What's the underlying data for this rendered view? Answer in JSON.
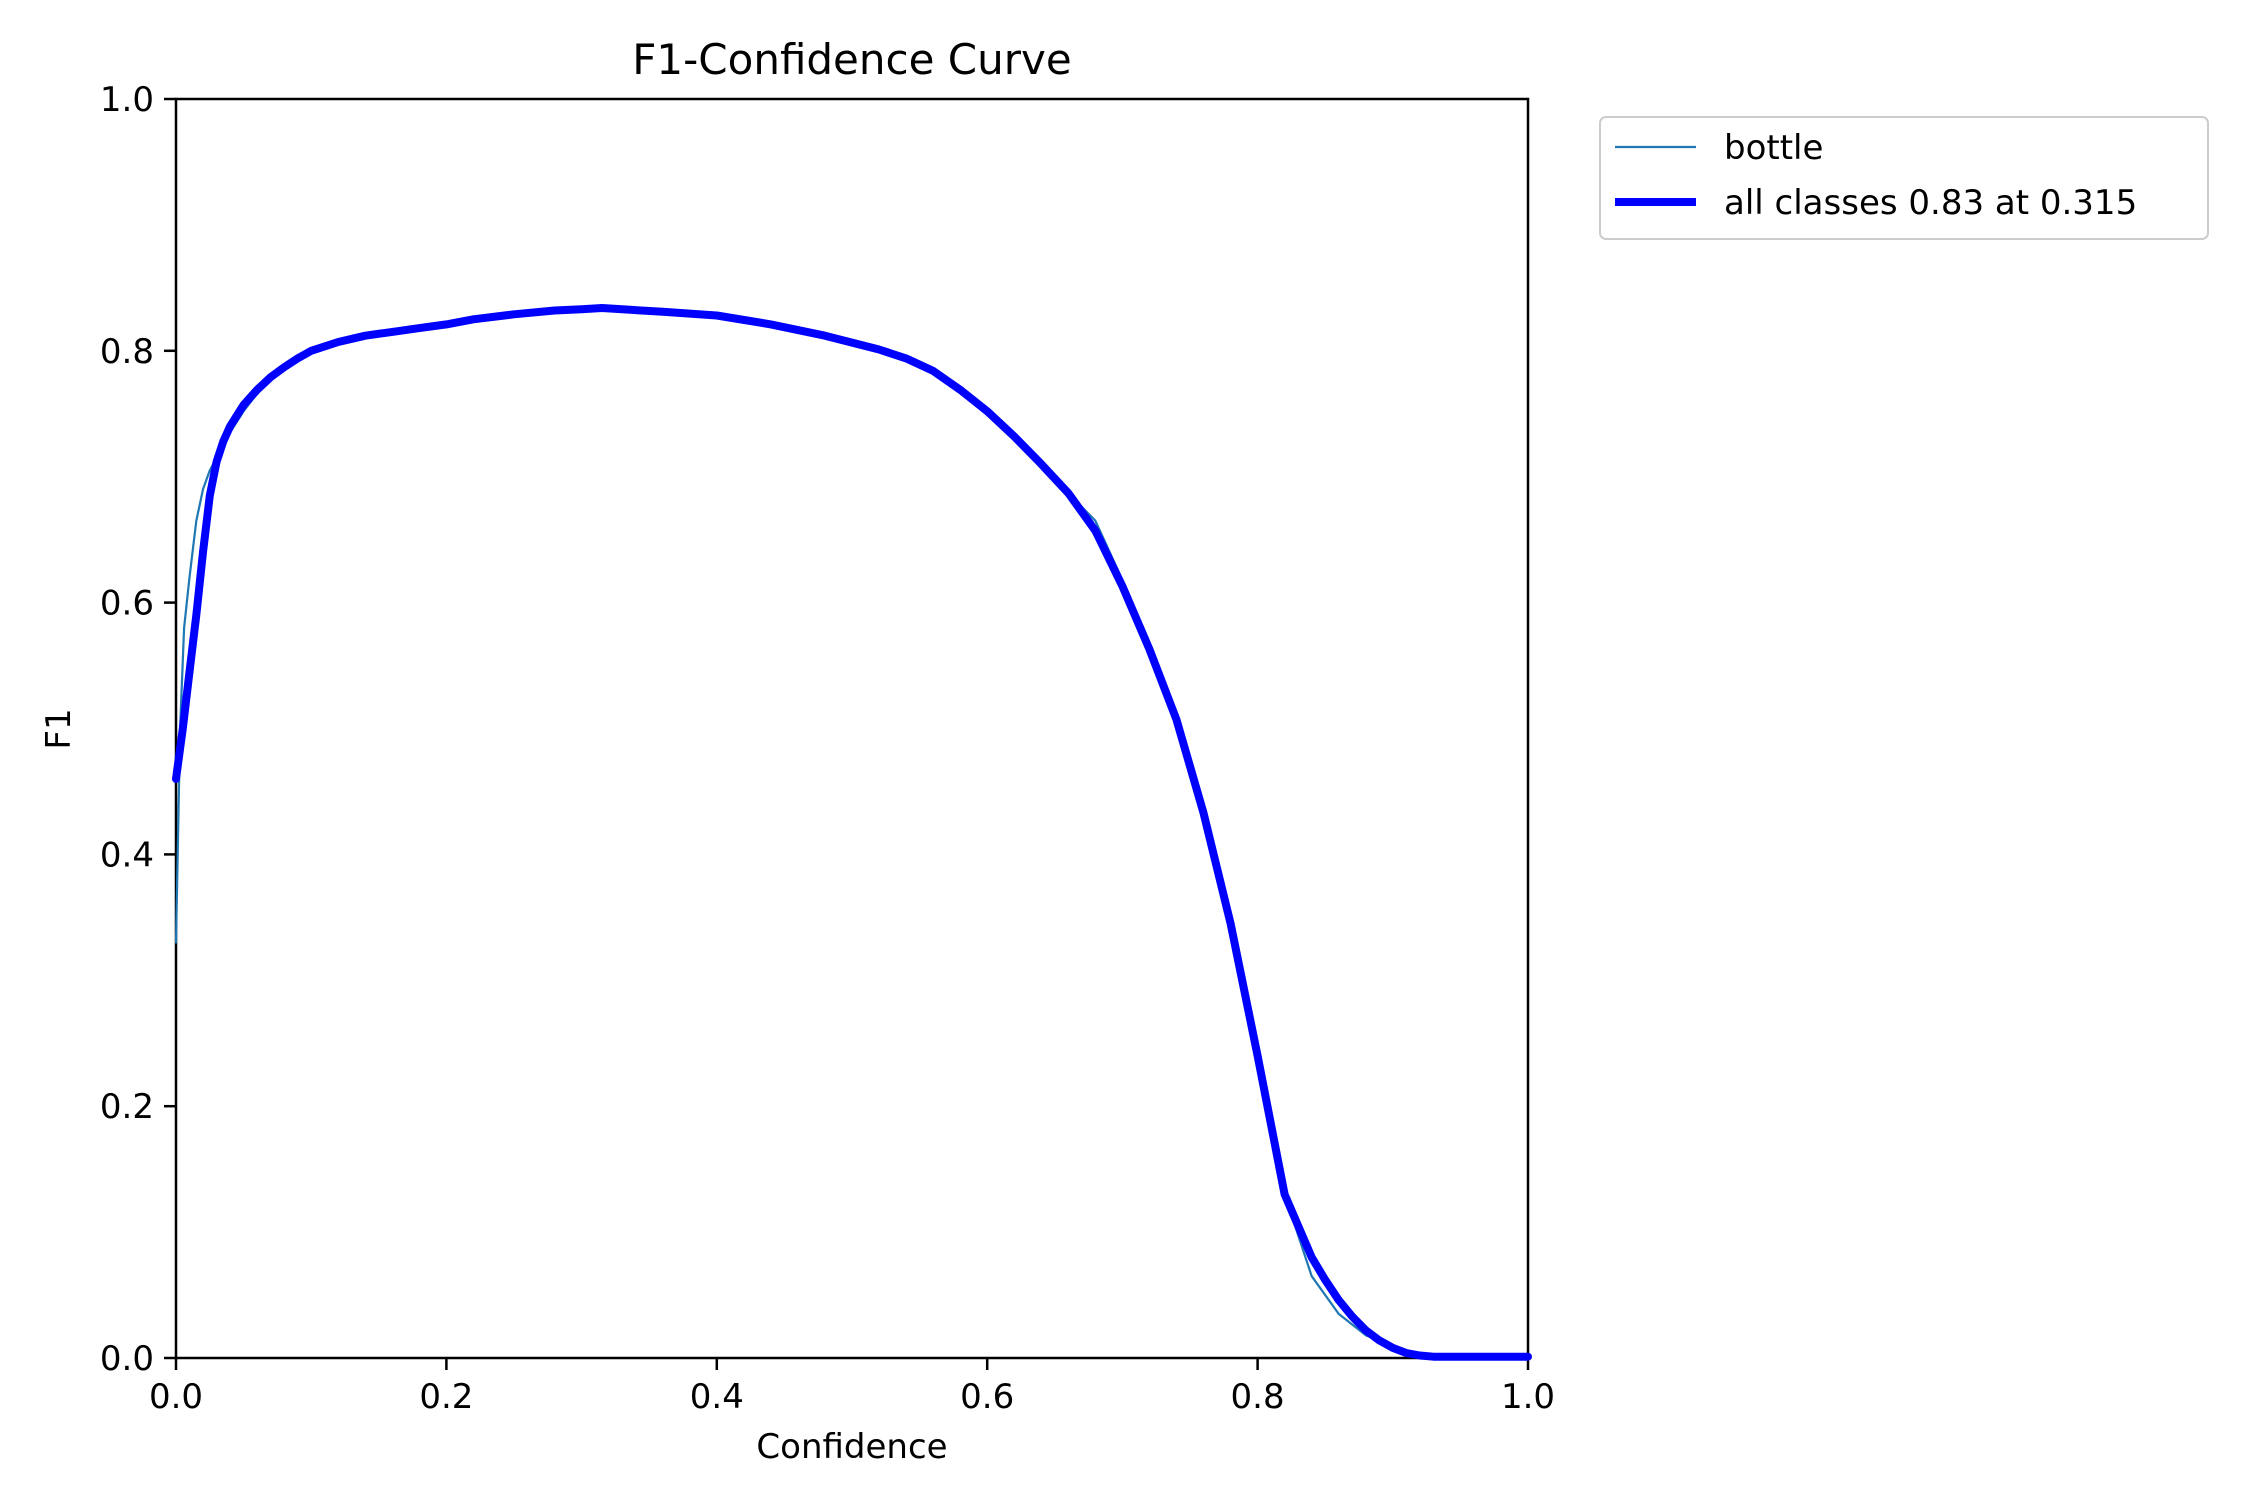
{
  "chart_data": {
    "type": "line",
    "title": "F1-Confidence Curve",
    "xlabel": "Confidence",
    "ylabel": "F1",
    "xlim": [
      0,
      1
    ],
    "ylim": [
      0,
      1
    ],
    "xticks": [
      "0.0",
      "0.2",
      "0.4",
      "0.6",
      "0.8",
      "1.0"
    ],
    "yticks": [
      "0.0",
      "0.2",
      "0.4",
      "0.6",
      "0.8",
      "1.0"
    ],
    "grid": false,
    "legend_position": "outside-top-right",
    "series": [
      {
        "name": "bottle",
        "color": "#1f77b4",
        "x": [
          0.0,
          0.003,
          0.006,
          0.01,
          0.015,
          0.02,
          0.025,
          0.03,
          0.035,
          0.04,
          0.05,
          0.06,
          0.07,
          0.08,
          0.09,
          0.1,
          0.12,
          0.14,
          0.16,
          0.18,
          0.2,
          0.22,
          0.25,
          0.28,
          0.3,
          0.315,
          0.33,
          0.36,
          0.4,
          0.44,
          0.48,
          0.52,
          0.54,
          0.56,
          0.58,
          0.6,
          0.62,
          0.64,
          0.66,
          0.68,
          0.7,
          0.72,
          0.74,
          0.76,
          0.78,
          0.8,
          0.82,
          0.84,
          0.86,
          0.88,
          0.9,
          0.91,
          0.92,
          0.93,
          0.95,
          0.97,
          1.0
        ],
        "y": [
          0.33,
          0.5,
          0.58,
          0.62,
          0.665,
          0.69,
          0.705,
          0.715,
          0.725,
          0.735,
          0.752,
          0.766,
          0.777,
          0.786,
          0.794,
          0.8,
          0.807,
          0.812,
          0.815,
          0.818,
          0.821,
          0.825,
          0.829,
          0.832,
          0.833,
          0.834,
          0.833,
          0.831,
          0.828,
          0.821,
          0.812,
          0.801,
          0.794,
          0.784,
          0.769,
          0.752,
          0.732,
          0.71,
          0.687,
          0.665,
          0.618,
          0.567,
          0.51,
          0.435,
          0.345,
          0.24,
          0.13,
          0.065,
          0.035,
          0.018,
          0.01,
          0.004,
          0.002,
          0.001,
          0.001,
          0.001,
          0.001
        ]
      },
      {
        "name": "all classes 0.83 at 0.315",
        "color": "#0000ff",
        "x": [
          0.0,
          0.005,
          0.01,
          0.015,
          0.02,
          0.025,
          0.03,
          0.035,
          0.04,
          0.05,
          0.06,
          0.07,
          0.08,
          0.09,
          0.1,
          0.12,
          0.14,
          0.16,
          0.18,
          0.2,
          0.22,
          0.25,
          0.28,
          0.3,
          0.315,
          0.33,
          0.36,
          0.4,
          0.44,
          0.48,
          0.52,
          0.54,
          0.56,
          0.58,
          0.6,
          0.62,
          0.64,
          0.66,
          0.68,
          0.7,
          0.72,
          0.74,
          0.76,
          0.78,
          0.8,
          0.82,
          0.84,
          0.85,
          0.86,
          0.87,
          0.88,
          0.89,
          0.9,
          0.91,
          0.92,
          0.93,
          0.95,
          0.97,
          1.0
        ],
        "y": [
          0.46,
          0.5,
          0.545,
          0.59,
          0.64,
          0.685,
          0.712,
          0.728,
          0.74,
          0.757,
          0.769,
          0.779,
          0.787,
          0.794,
          0.8,
          0.807,
          0.812,
          0.815,
          0.818,
          0.821,
          0.825,
          0.829,
          0.832,
          0.833,
          0.834,
          0.833,
          0.831,
          0.828,
          0.821,
          0.812,
          0.801,
          0.794,
          0.784,
          0.769,
          0.752,
          0.732,
          0.71,
          0.687,
          0.657,
          0.613,
          0.563,
          0.507,
          0.433,
          0.345,
          0.24,
          0.13,
          0.08,
          0.062,
          0.046,
          0.033,
          0.022,
          0.014,
          0.008,
          0.004,
          0.002,
          0.001,
          0.001,
          0.001,
          0.001
        ]
      }
    ]
  }
}
